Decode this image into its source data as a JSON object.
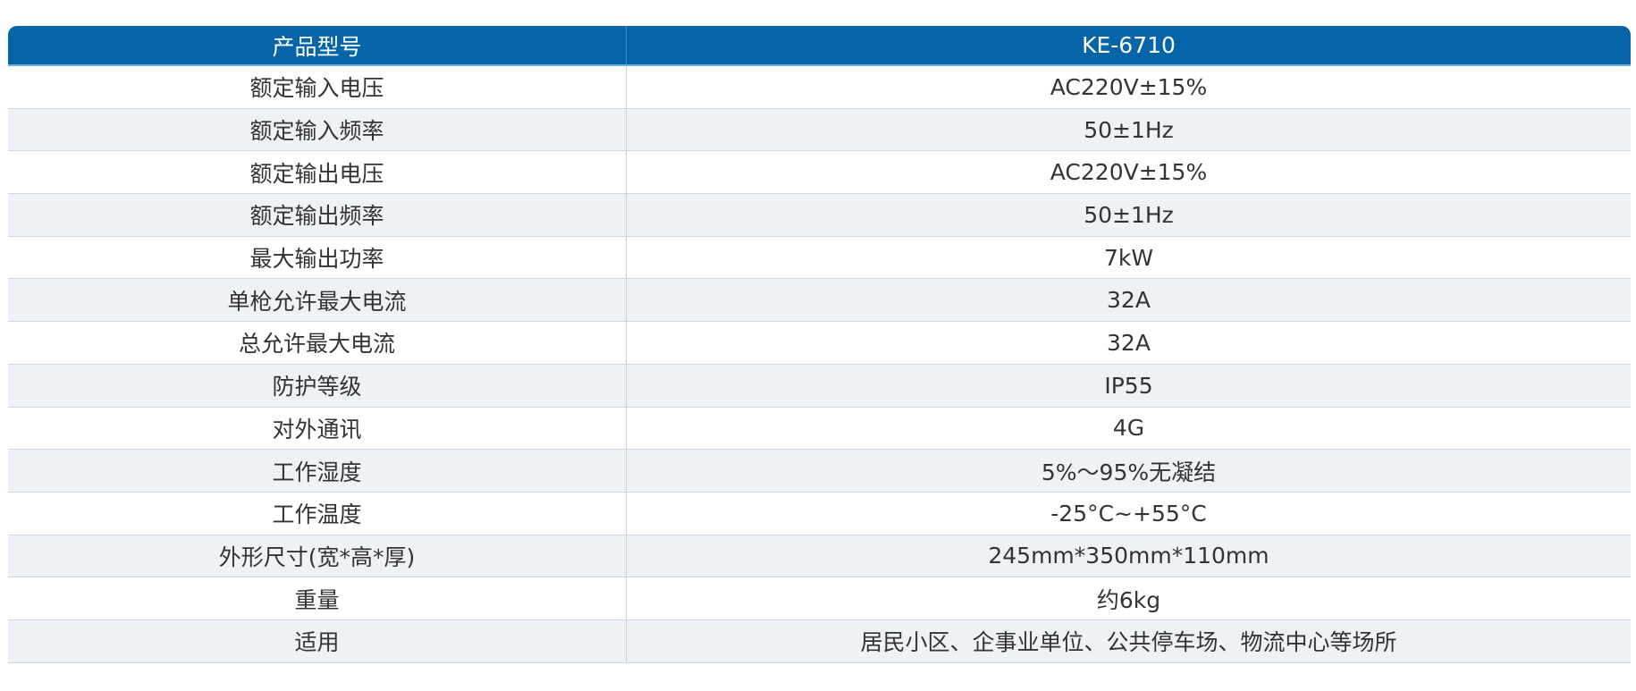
{
  "header": {
    "label": "产品型号",
    "value": "KE-6710"
  },
  "colors": {
    "header_bg": "#0565a8",
    "alt_row_bg": "#eef2f7"
  },
  "rows": [
    {
      "label": "额定输入电压",
      "value": "AC220V±15%"
    },
    {
      "label": "额定输入频率",
      "value": "50±1Hz"
    },
    {
      "label": "额定输出电压",
      "value": "AC220V±15%"
    },
    {
      "label": "额定输出频率",
      "value": "50±1Hz"
    },
    {
      "label": "最大输出功率",
      "value": "7kW"
    },
    {
      "label": "单枪允许最大电流",
      "value": "32A"
    },
    {
      "label": "总允许最大电流",
      "value": "32A"
    },
    {
      "label": "防护等级",
      "value": "IP55"
    },
    {
      "label": "对外通讯",
      "value": "4G"
    },
    {
      "label": "工作湿度",
      "value": "5%～95%无凝结"
    },
    {
      "label": "工作温度",
      "value": "-25°C~+55°C"
    },
    {
      "label": "外形尺寸(宽*高*厚)",
      "value": "245mm*350mm*110mm"
    },
    {
      "label": "重量",
      "value": "约6kg"
    },
    {
      "label": "适用",
      "value": "居民小区、企事业单位、公共停车场、物流中心等场所"
    }
  ]
}
